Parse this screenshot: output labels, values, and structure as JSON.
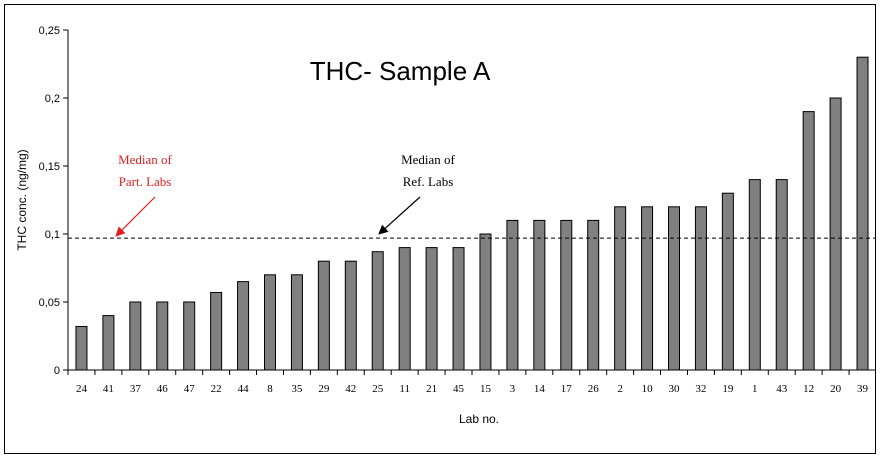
{
  "chart_data": {
    "type": "bar",
    "title": "THC- Sample A",
    "xlabel": "Lab no.",
    "ylabel": "THC conc. (ng/mg)",
    "ylim": [
      0,
      0.25
    ],
    "yticks": [
      "0",
      "0,05",
      "0,1",
      "0,15",
      "0,2",
      "0,25"
    ],
    "categories": [
      "24",
      "41",
      "37",
      "46",
      "47",
      "22",
      "44",
      "8",
      "35",
      "29",
      "42",
      "25",
      "11",
      "21",
      "45",
      "15",
      "3",
      "14",
      "17",
      "26",
      "2",
      "10",
      "30",
      "32",
      "19",
      "1",
      "43",
      "12",
      "20",
      "39"
    ],
    "values": [
      0.032,
      0.04,
      0.05,
      0.05,
      0.05,
      0.057,
      0.065,
      0.07,
      0.07,
      0.08,
      0.08,
      0.087,
      0.09,
      0.09,
      0.09,
      0.1,
      0.11,
      0.11,
      0.11,
      0.11,
      0.12,
      0.12,
      0.12,
      0.12,
      0.13,
      0.14,
      0.14,
      0.19,
      0.2,
      0.23
    ],
    "reference_line": 0.097,
    "bar_color": "#808080",
    "annotations": [
      {
        "text_line1": "Median of",
        "text_line2": "Part. Labs",
        "color": "#e02020"
      },
      {
        "text_line1": "Median of",
        "text_line2": "Ref. Labs",
        "color": "#000000"
      }
    ],
    "grid": false,
    "legend": "none"
  }
}
